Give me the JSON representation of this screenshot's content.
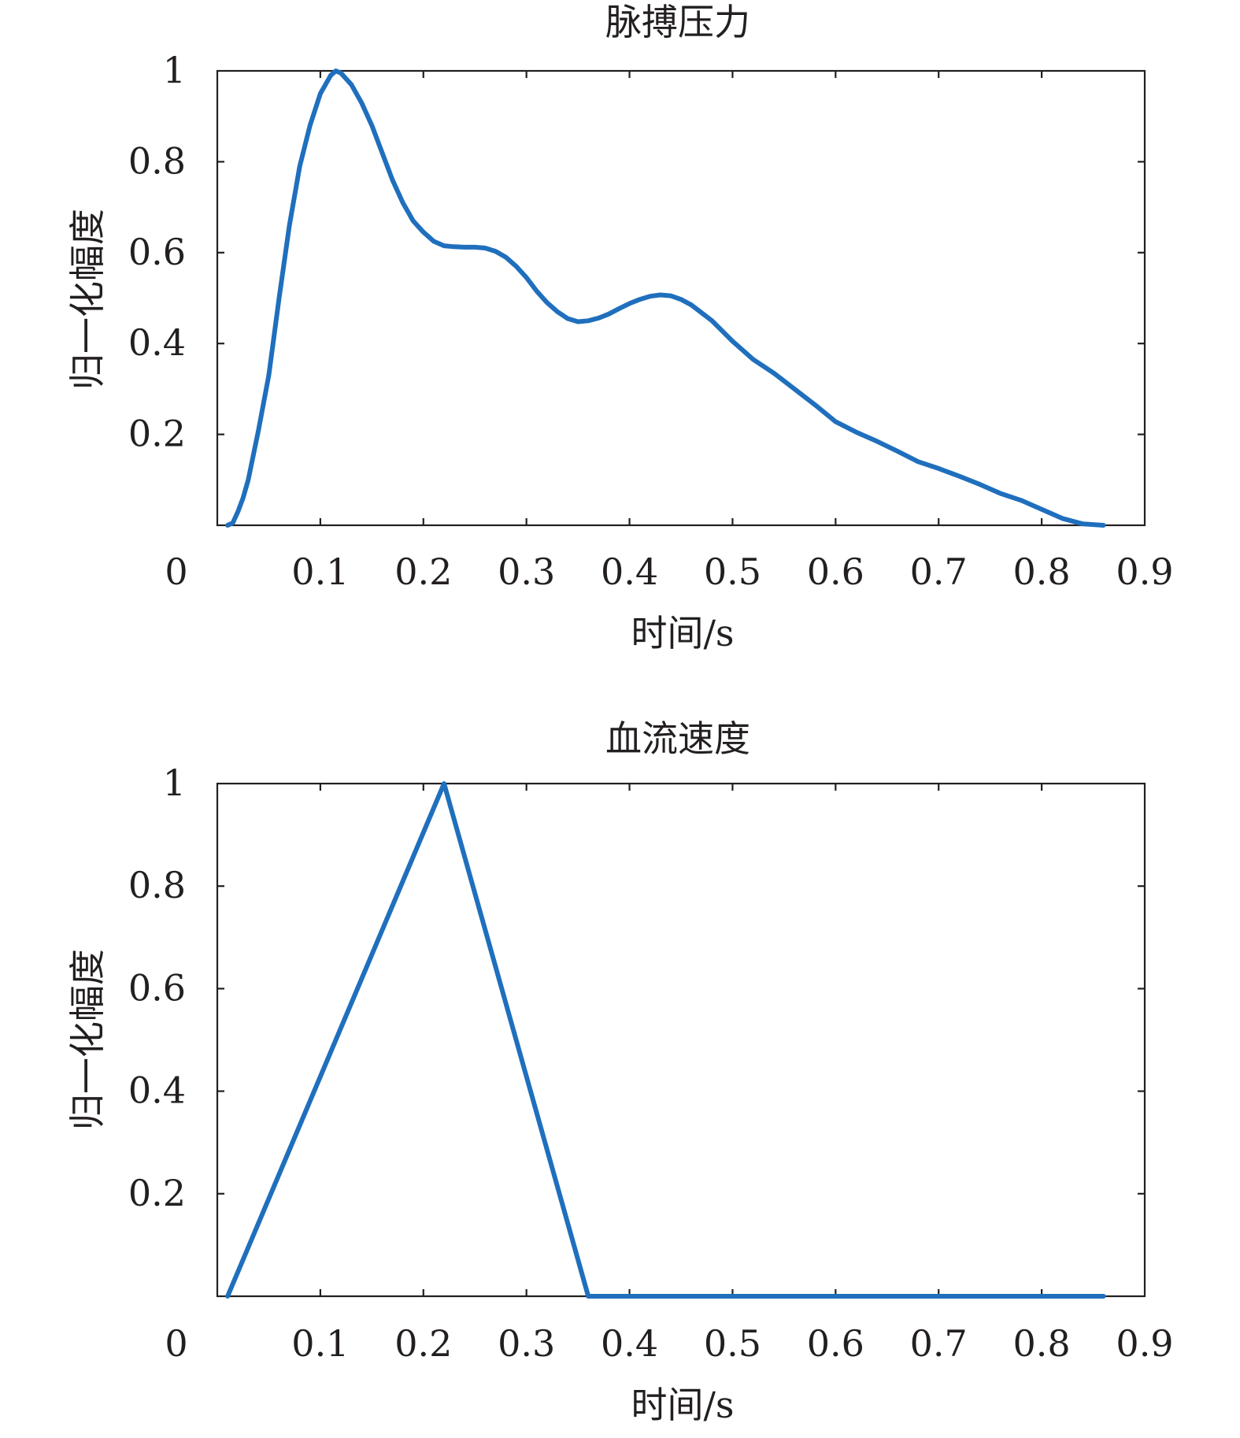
{
  "colors": {
    "series": "#1f6fbd",
    "axis": "#231f20",
    "background": "#ffffff"
  },
  "chart_data": [
    {
      "type": "line",
      "title": "脉搏压力",
      "xlabel": "时间/s",
      "ylabel": "归一化幅度",
      "xlim": [
        0,
        0.9
      ],
      "ylim": [
        0,
        1
      ],
      "grid": false,
      "x_ticks": [
        "0",
        "0.1",
        "0.2",
        "0.3",
        "0.4",
        "0.5",
        "0.6",
        "0.7",
        "0.8",
        "0.9"
      ],
      "y_ticks": [
        "0.2",
        "0.4",
        "0.6",
        "0.8",
        "1"
      ],
      "series": [
        {
          "x": [
            0.01,
            0.015,
            0.02,
            0.025,
            0.03,
            0.04,
            0.05,
            0.06,
            0.07,
            0.08,
            0.09,
            0.1,
            0.11,
            0.115,
            0.12,
            0.13,
            0.14,
            0.15,
            0.16,
            0.17,
            0.18,
            0.19,
            0.2,
            0.21,
            0.22,
            0.23,
            0.24,
            0.25,
            0.26,
            0.27,
            0.28,
            0.29,
            0.3,
            0.31,
            0.32,
            0.33,
            0.34,
            0.35,
            0.36,
            0.37,
            0.38,
            0.39,
            0.4,
            0.41,
            0.42,
            0.43,
            0.44,
            0.45,
            0.46,
            0.48,
            0.5,
            0.52,
            0.54,
            0.56,
            0.58,
            0.6,
            0.62,
            0.64,
            0.66,
            0.68,
            0.7,
            0.72,
            0.74,
            0.76,
            0.78,
            0.8,
            0.82,
            0.84,
            0.86
          ],
          "y": [
            0.0,
            0.005,
            0.03,
            0.06,
            0.1,
            0.21,
            0.33,
            0.5,
            0.66,
            0.79,
            0.88,
            0.95,
            0.99,
            1.0,
            0.995,
            0.97,
            0.93,
            0.88,
            0.82,
            0.76,
            0.71,
            0.67,
            0.645,
            0.625,
            0.615,
            0.613,
            0.612,
            0.612,
            0.61,
            0.603,
            0.59,
            0.57,
            0.545,
            0.515,
            0.49,
            0.47,
            0.455,
            0.448,
            0.45,
            0.456,
            0.465,
            0.477,
            0.488,
            0.497,
            0.504,
            0.507,
            0.505,
            0.497,
            0.485,
            0.45,
            0.405,
            0.365,
            0.335,
            0.3,
            0.265,
            0.228,
            0.205,
            0.185,
            0.163,
            0.14,
            0.125,
            0.108,
            0.09,
            0.07,
            0.055,
            0.035,
            0.015,
            0.003,
            0.0
          ]
        }
      ]
    },
    {
      "type": "line",
      "title": "血流速度",
      "xlabel": "时间/s",
      "ylabel": "归一化幅度",
      "xlim": [
        0,
        0.9
      ],
      "ylim": [
        0,
        1
      ],
      "grid": false,
      "x_ticks": [
        "0",
        "0.1",
        "0.2",
        "0.3",
        "0.4",
        "0.5",
        "0.6",
        "0.7",
        "0.8",
        "0.9"
      ],
      "y_ticks": [
        "0.2",
        "0.4",
        "0.6",
        "0.8",
        "1"
      ],
      "series": [
        {
          "x": [
            0.01,
            0.22,
            0.36,
            0.86
          ],
          "y": [
            0.0,
            1.0,
            0.0,
            0.0
          ]
        }
      ]
    }
  ]
}
